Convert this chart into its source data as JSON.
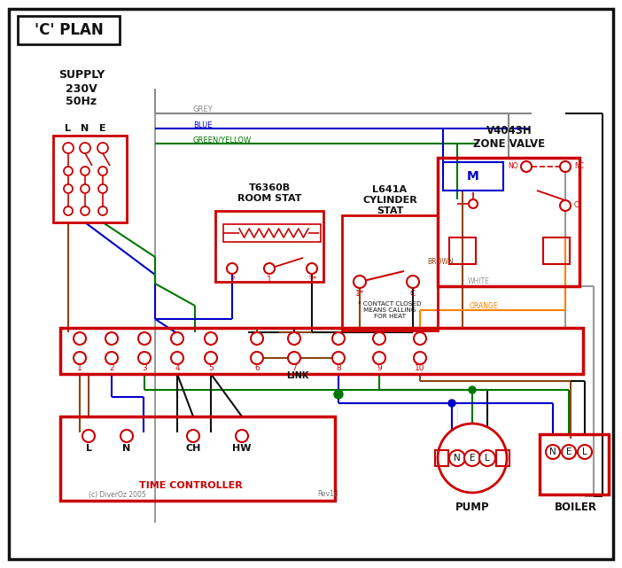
{
  "title": "'C' PLAN",
  "bg_color": "#ffffff",
  "red": "#cc0000",
  "blue": "#0000cc",
  "green": "#007700",
  "brown": "#8B4513",
  "grey": "#888888",
  "orange": "#FF8000",
  "black": "#111111",
  "white_wire": "#999999",
  "supply_text": "SUPPLY\n230V\n50Hz",
  "room_stat_title": "T6360B\nROOM STAT",
  "cyl_stat_title": "L641A\nCYLINDER\nSTAT",
  "zone_valve_title": "V4043H\nZONE VALVE",
  "tc_label": "TIME CONTROLLER",
  "pump_label": "PUMP",
  "boiler_label": "BOILER",
  "link_label": "LINK",
  "copyright": "(c) DiverOz 2005",
  "rev": "Rev1d",
  "footnote": "* CONTACT CLOSED\nMEANS CALLING\nFOR HEAT"
}
